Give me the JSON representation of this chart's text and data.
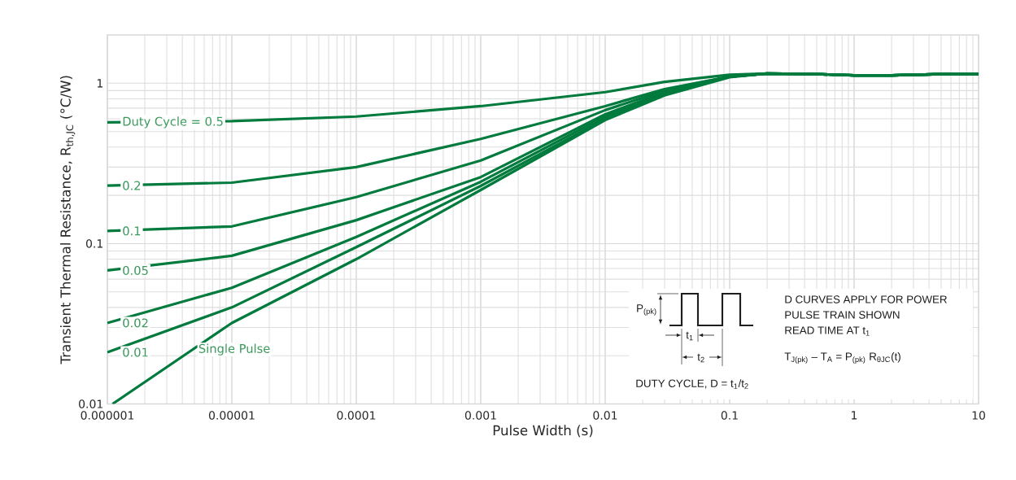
{
  "chart_data": {
    "type": "line",
    "xlabel": "Pulse Width (s)",
    "ylabel": "Transient Thermal Resistance, R$_{th,JC}$ (°C/W)",
    "x": [
      1e-06,
      1e-05,
      0.0001,
      0.001,
      0.01,
      0.03,
      0.1,
      0.2,
      0.5,
      1,
      2,
      5,
      10
    ],
    "series": [
      {
        "name": "Duty Cycle = 0.5",
        "color": "#007a3d",
        "values": [
          0.57,
          0.58,
          0.62,
          0.72,
          0.88,
          1.02,
          1.13,
          1.15,
          1.14,
          1.12,
          1.12,
          1.14,
          1.14
        ]
      },
      {
        "name": "0.2",
        "color": "#007a3d",
        "values": [
          0.23,
          0.24,
          0.3,
          0.45,
          0.72,
          0.92,
          1.1,
          1.15,
          1.14,
          1.12,
          1.12,
          1.14,
          1.14
        ]
      },
      {
        "name": "0.1",
        "color": "#007a3d",
        "values": [
          0.12,
          0.128,
          0.195,
          0.33,
          0.68,
          0.9,
          1.1,
          1.15,
          1.14,
          1.12,
          1.12,
          1.14,
          1.14
        ]
      },
      {
        "name": "0.05",
        "color": "#007a3d",
        "values": [
          0.068,
          0.084,
          0.14,
          0.26,
          0.64,
          0.88,
          1.1,
          1.15,
          1.14,
          1.12,
          1.12,
          1.14,
          1.14
        ]
      },
      {
        "name": "0.02",
        "color": "#007a3d",
        "values": [
          0.032,
          0.053,
          0.11,
          0.243,
          0.62,
          0.86,
          1.1,
          1.15,
          1.14,
          1.12,
          1.12,
          1.14,
          1.14
        ]
      },
      {
        "name": "0.01",
        "color": "#007a3d",
        "values": [
          0.021,
          0.04,
          0.095,
          0.229,
          0.6,
          0.85,
          1.1,
          1.15,
          1.14,
          1.12,
          1.12,
          1.14,
          1.14
        ]
      },
      {
        "name": "Single Pulse",
        "color": "#007a3d",
        "x": [
          1.1e-06,
          1e-05,
          0.0001,
          0.001,
          0.01,
          0.03,
          0.1,
          0.2,
          0.5,
          1,
          2,
          5,
          10
        ],
        "values": [
          0.01,
          0.032,
          0.08,
          0.216,
          0.59,
          0.84,
          1.09,
          1.15,
          1.14,
          1.12,
          1.12,
          1.14,
          1.14
        ]
      }
    ],
    "xlim": [
      1e-06,
      10
    ],
    "ylim": [
      0.01,
      2
    ],
    "xticks": [
      {
        "value": 1e-06,
        "label": "0.000001"
      },
      {
        "value": 1e-05,
        "label": "0.00001"
      },
      {
        "value": 0.0001,
        "label": "0.0001"
      },
      {
        "value": 0.001,
        "label": "0.001"
      },
      {
        "value": 0.01,
        "label": "0.01"
      },
      {
        "value": 0.1,
        "label": "0.1"
      },
      {
        "value": 1,
        "label": "1"
      },
      {
        "value": 10,
        "label": "10"
      }
    ],
    "yticks": [
      {
        "value": 0.01,
        "label": "0.01"
      },
      {
        "value": 0.1,
        "label": "0.1"
      },
      {
        "value": 1,
        "label": "1"
      }
    ],
    "log": "xy",
    "grid": true,
    "marker": "none",
    "line_style": "solid",
    "annotations": [
      "P$_{(pk)}$",
      "t$_{1}$",
      "t$_{2}$",
      "DUTY CYCLE, D = t$_{1}$/t$_{2}$",
      "D CURVES APPLY FOR POWER",
      "PULSE TRAIN SHOWN",
      "READ TIME AT t$_{1}$",
      "T$_{J(pk)}$ – T$_{A}$ = P$_{(pk)}$ R$_{θJC}$(t)"
    ]
  }
}
